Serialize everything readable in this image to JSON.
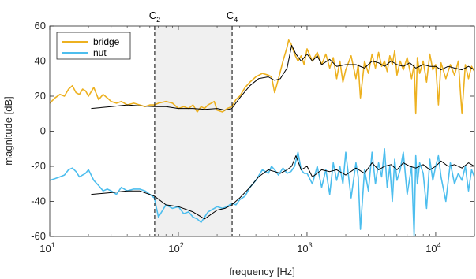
{
  "chart_data": {
    "type": "line",
    "xlabel": "frequency [Hz]",
    "ylabel": "magnitude [dB]",
    "xscale": "log",
    "xlim": [
      10,
      20000
    ],
    "ylim": [
      -60,
      60
    ],
    "xticks": [
      {
        "value": 10,
        "base": "10",
        "exp": "1"
      },
      {
        "value": 100,
        "base": "10",
        "exp": "2"
      },
      {
        "value": 1000,
        "base": "10",
        "exp": "3"
      },
      {
        "value": 10000,
        "base": "10",
        "exp": "4"
      }
    ],
    "yticks": [
      -60,
      -40,
      -20,
      0,
      20,
      40,
      60
    ],
    "grid": false,
    "legend_position": "top-left",
    "band": {
      "x0": 65.4,
      "x1": 261.6,
      "color": "#f0f0f0"
    },
    "markers": [
      {
        "x": 65.4,
        "label": "C",
        "sub": "2"
      },
      {
        "x": 261.6,
        "label": "C",
        "sub": "4"
      }
    ],
    "series": [
      {
        "name": "bridge",
        "color": "#EDB120",
        "x": [
          10,
          11,
          12,
          13,
          14,
          15,
          16,
          17,
          18,
          19,
          20,
          22,
          24,
          26,
          28,
          30,
          33,
          36,
          40,
          45,
          50,
          55,
          60,
          65,
          70,
          80,
          90,
          100,
          110,
          120,
          130,
          140,
          150,
          160,
          170,
          180,
          190,
          200,
          220,
          240,
          260,
          280,
          300,
          330,
          360,
          400,
          450,
          500,
          530,
          560,
          580,
          600,
          620,
          650,
          700,
          720,
          750,
          800,
          850,
          900,
          950,
          1000,
          1100,
          1200,
          1300,
          1400,
          1500,
          1600,
          1700,
          1800,
          1900,
          2000,
          2200,
          2400,
          2500,
          2600,
          2800,
          3000,
          3200,
          3400,
          3600,
          3800,
          4000,
          4200,
          4400,
          4600,
          4800,
          5000,
          5300,
          5600,
          6000,
          6500,
          6800,
          7000,
          7200,
          7500,
          8000,
          8500,
          9000,
          9500,
          10000,
          10500,
          11000,
          12000,
          13000,
          14000,
          15000,
          16000,
          17000,
          18000,
          19000,
          20000
        ],
        "y": [
          16,
          19,
          21,
          20,
          24,
          26,
          22,
          21,
          24,
          23,
          20,
          25,
          18,
          21,
          19,
          17,
          16,
          17,
          15,
          16,
          15,
          14,
          15,
          15,
          16,
          17,
          16,
          13,
          14,
          13,
          15,
          11,
          14,
          13,
          15,
          16,
          17,
          12,
          11,
          13,
          14,
          18,
          20,
          25,
          28,
          31,
          33,
          32,
          31,
          22,
          26,
          30,
          34,
          40,
          48,
          52,
          50,
          44,
          40,
          43,
          38,
          47,
          40,
          45,
          38,
          44,
          36,
          42,
          30,
          40,
          28,
          35,
          43,
          30,
          38,
          19,
          40,
          33,
          44,
          36,
          45,
          37,
          40,
          34,
          43,
          38,
          46,
          32,
          40,
          35,
          42,
          30,
          38,
          10,
          42,
          33,
          40,
          28,
          44,
          35,
          38,
          15,
          39,
          30,
          38,
          32,
          40,
          10,
          38,
          30,
          37,
          34
        ]
      },
      {
        "name": "nut",
        "color": "#4DBEEE",
        "x": [
          10,
          11,
          12,
          13,
          14,
          15,
          16,
          17,
          18,
          19,
          20,
          22,
          24,
          26,
          28,
          30,
          33,
          36,
          40,
          45,
          50,
          55,
          60,
          65,
          70,
          80,
          90,
          100,
          110,
          120,
          130,
          140,
          150,
          160,
          170,
          180,
          190,
          200,
          220,
          240,
          260,
          280,
          300,
          330,
          360,
          400,
          450,
          500,
          530,
          560,
          600,
          650,
          700,
          750,
          800,
          850,
          900,
          950,
          1000,
          1100,
          1200,
          1300,
          1400,
          1500,
          1600,
          1700,
          1800,
          1900,
          2000,
          2200,
          2400,
          2500,
          2600,
          2800,
          3000,
          3200,
          3400,
          3600,
          3800,
          4000,
          4200,
          4400,
          4600,
          4800,
          5000,
          5300,
          5600,
          6000,
          6500,
          6800,
          7000,
          7200,
          7500,
          8000,
          8500,
          9000,
          9500,
          10000,
          10500,
          11000,
          12000,
          13000,
          14000,
          15000,
          16000,
          17000,
          18000,
          19000,
          20000
        ],
        "y": [
          -28,
          -27,
          -26,
          -25,
          -22,
          -21,
          -23,
          -26,
          -25,
          -24,
          -22,
          -28,
          -31,
          -34,
          -33,
          -34,
          -36,
          -32,
          -34,
          -33,
          -33,
          -34,
          -36,
          -38,
          -49,
          -42,
          -44,
          -43,
          -47,
          -46,
          -49,
          -50,
          -52,
          -49,
          -46,
          -45,
          -44,
          -43,
          -44,
          -43,
          -41,
          -42,
          -39,
          -37,
          -32,
          -28,
          -22,
          -24,
          -20,
          -22,
          -25,
          -21,
          -24,
          -23,
          -20,
          -12,
          -22,
          -24,
          -24,
          -30,
          -20,
          -32,
          -22,
          -36,
          -18,
          -28,
          -20,
          -30,
          -12,
          -38,
          -18,
          -26,
          -56,
          -22,
          -34,
          -12,
          -30,
          -18,
          -26,
          -10,
          -32,
          -20,
          -40,
          -16,
          -28,
          -22,
          -12,
          -36,
          -20,
          -60,
          -14,
          -30,
          -18,
          -24,
          -44,
          -16,
          -28,
          -20,
          -14,
          -26,
          -40,
          -18,
          -30,
          -24,
          -28,
          -20,
          -34,
          -22,
          -26
        ]
      },
      {
        "name": "",
        "color": "#000000",
        "x": [
          21,
          30,
          40,
          50,
          65,
          80,
          100,
          130,
          160,
          200,
          230,
          260,
          300,
          360,
          420,
          500,
          560,
          620,
          700,
          760,
          820,
          900,
          1000,
          1100,
          1200,
          1300,
          1500,
          1700,
          2000,
          2400,
          2800,
          3200,
          3600,
          4000,
          4500,
          5000,
          5600,
          6300,
          7000,
          8000,
          9000,
          10000,
          11000,
          12500,
          14000,
          16000,
          18000,
          20000
        ],
        "y": [
          13,
          14,
          15,
          14.5,
          14,
          14,
          13,
          13,
          12.5,
          13,
          12,
          13,
          19,
          26,
          30,
          31,
          29,
          30,
          36,
          49,
          44,
          40,
          44,
          40,
          43,
          38,
          41,
          37,
          38,
          38,
          36,
          40,
          39,
          37,
          40,
          38,
          37,
          39,
          36,
          38,
          37,
          37,
          35,
          37,
          36,
          35,
          37,
          35
        ]
      },
      {
        "name": "",
        "color": "#000000",
        "x": [
          21,
          30,
          40,
          50,
          65,
          80,
          100,
          130,
          160,
          200,
          230,
          260,
          300,
          360,
          420,
          500,
          560,
          620,
          700,
          760,
          820,
          900,
          1000,
          1100,
          1200,
          1300,
          1500,
          1700,
          2000,
          2400,
          2800,
          3200,
          3600,
          4000,
          4500,
          5000,
          5600,
          6300,
          7000,
          8000,
          9000,
          10000,
          11000,
          12500,
          14000,
          16000,
          18000,
          20000
        ],
        "y": [
          -36,
          -35,
          -34,
          -34,
          -37,
          -42,
          -43,
          -46,
          -50,
          -45,
          -44,
          -42,
          -38,
          -32,
          -26,
          -22,
          -23,
          -24,
          -22,
          -20,
          -14,
          -22,
          -20,
          -26,
          -24,
          -22,
          -23,
          -22,
          -25,
          -21,
          -24,
          -18,
          -22,
          -20,
          -19,
          -22,
          -18,
          -20,
          -21,
          -19,
          -22,
          -20,
          -17,
          -20,
          -19,
          -21,
          -18,
          -20
        ]
      }
    ]
  }
}
